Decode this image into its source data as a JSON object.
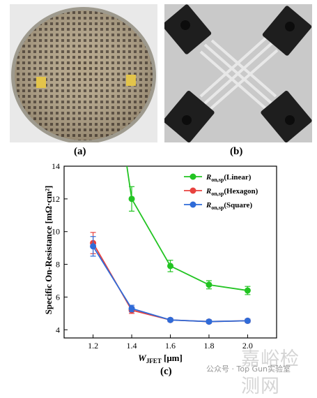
{
  "panels": {
    "a_label": "(a)",
    "b_label": "(b)",
    "c_label": "(c)"
  },
  "watermark": {
    "site": "嘉峪检测网",
    "wechat": "公众号 · Top Gun实验室"
  },
  "chart_data": {
    "type": "line",
    "xlabel_main": "W",
    "xlabel_sub": "JFET",
    "xlabel_unit": " [μm]",
    "ylabel": "Specific On-Resistance [mΩ·cm²]",
    "xlim": [
      1.05,
      2.15
    ],
    "ylim": [
      3.5,
      14
    ],
    "x_ticks": [
      "1.2",
      "1.4",
      "1.6",
      "1.8",
      "2.0"
    ],
    "y_ticks": [
      "4",
      "6",
      "8",
      "10",
      "12",
      "14"
    ],
    "legend_placement": "top-right",
    "series": [
      {
        "name": "R",
        "name_sub": "on,sp",
        "name_suffix": "(Linear)",
        "color": "#22c422",
        "x": [
          1.4,
          1.6,
          1.8,
          2.0
        ],
        "y": [
          12.0,
          7.9,
          6.75,
          6.4
        ],
        "err": [
          0.75,
          0.35,
          0.25,
          0.25
        ],
        "curve_start": [
          1.375,
          14.0
        ]
      },
      {
        "name": "R",
        "name_sub": "on,sp",
        "name_suffix": "(Hexagon)",
        "color": "#e8423f",
        "x": [
          1.2,
          1.4,
          1.6,
          1.8,
          2.0
        ],
        "y": [
          9.3,
          5.2,
          4.6,
          4.5,
          4.55
        ],
        "err": [
          0.65,
          0.2,
          0.1,
          0.1,
          0.1
        ]
      },
      {
        "name": "R",
        "name_sub": "on,sp",
        "name_suffix": "(Square)",
        "color": "#2f6bd8",
        "x": [
          1.2,
          1.4,
          1.6,
          1.8,
          2.0
        ],
        "y": [
          9.1,
          5.3,
          4.6,
          4.5,
          4.55
        ],
        "err": [
          0.6,
          0.2,
          0.1,
          0.1,
          0.1
        ]
      }
    ]
  }
}
